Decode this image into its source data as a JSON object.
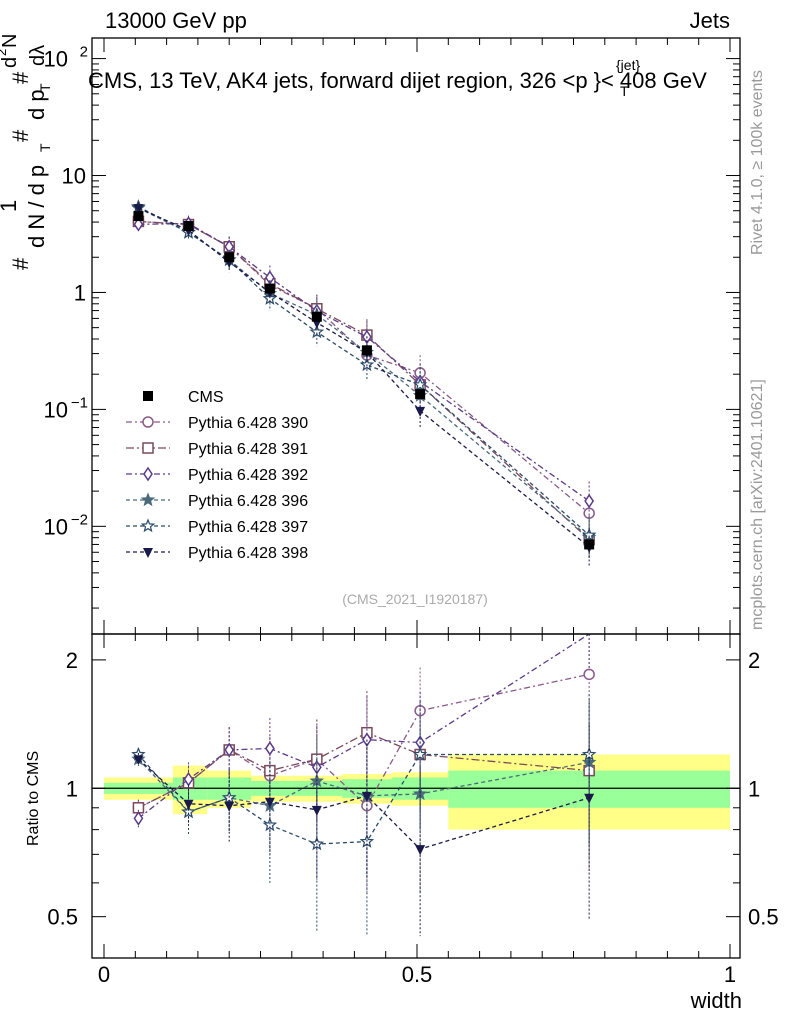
{
  "chart_data": {
    "type": "line",
    "header_left": "13000 GeV pp",
    "header_right": "Jets",
    "title": "CMS, 13 TeV, AK4 jets, forward dijet region, 326 <",
    "title_pt": "p",
    "title_sub": "T",
    "title_sup": "{jet}",
    "title_end": "}< 408 GeV",
    "ylabel_parts": [
      "#",
      "1",
      "d N / d p",
      "T",
      "#",
      "d p",
      "T",
      "#",
      "d",
      "2",
      "N",
      "dλ"
    ],
    "xlabel": "width",
    "ratio_ylabel": "Ratio to CMS",
    "side_label_top": "Rivet 4.1.0, ≥ 100k events",
    "side_label_bottom": "mcplots.cern.ch [arXiv:2401.10621]",
    "watermark": "(CMS_2021_I1920187)",
    "xlim": [
      0,
      1
    ],
    "ylim_log": [
      0.0012,
      150
    ],
    "ratio_ylim": [
      0.4,
      2.3
    ],
    "x": [
      0.055,
      0.135,
      0.2,
      0.265,
      0.34,
      0.42,
      0.505,
      0.775
    ],
    "x_edges": [
      0.0,
      0.11,
      0.165,
      0.235,
      0.3,
      0.38,
      0.46,
      0.55,
      1.0
    ],
    "main_yticks": [
      {
        "v": 0.01,
        "label": "10",
        "exp": "−2"
      },
      {
        "v": 0.1,
        "label": "10",
        "exp": "−1"
      },
      {
        "v": 1,
        "label": "1",
        "exp": ""
      },
      {
        "v": 10,
        "label": "10",
        "exp": ""
      },
      {
        "v": 100,
        "label": "10",
        "exp": "2"
      }
    ],
    "ratio_yticks": [
      {
        "v": 0.5,
        "label": "0.5"
      },
      {
        "v": 1,
        "label": "1"
      },
      {
        "v": 2,
        "label": "2"
      }
    ],
    "xticks": [
      {
        "v": 0,
        "label": "0"
      },
      {
        "v": 0.5,
        "label": "0.5"
      },
      {
        "v": 1,
        "label": "1"
      }
    ],
    "data": {
      "name": "CMS",
      "values": [
        4.5,
        3.7,
        2.0,
        1.08,
        0.62,
        0.32,
        0.135,
        0.007
      ],
      "band_inner": [
        0.03,
        0.06,
        0.06,
        0.04,
        0.04,
        0.05,
        0.06,
        0.1
      ],
      "band_outer": [
        0.06,
        0.13,
        0.1,
        0.07,
        0.07,
        0.08,
        0.09,
        0.2
      ]
    },
    "series": [
      {
        "name": "Pythia 6.428 390",
        "marker": "circle-open",
        "color": "#8a5a8a",
        "dash": "6,3,2,3",
        "ratio": [
          0.9,
          1.03,
          1.23,
          1.07,
          1.17,
          0.91,
          1.52,
          1.85
        ]
      },
      {
        "name": "Pythia 6.428 391",
        "marker": "square-open",
        "color": "#7a4a5a",
        "dash": "8,3,2,3",
        "ratio": [
          0.9,
          1.03,
          1.23,
          1.1,
          1.17,
          1.35,
          1.2,
          1.1
        ]
      },
      {
        "name": "Pythia 6.428 392",
        "marker": "diamond-open",
        "color": "#5a3a8a",
        "dash": "6,3,2,3",
        "ratio": [
          0.85,
          1.05,
          1.23,
          1.24,
          1.12,
          1.3,
          1.28,
          2.35
        ]
      },
      {
        "name": "Pythia 6.428 396",
        "marker": "star-filled",
        "color": "#4a6a7a",
        "dash": "4,3",
        "ratio": [
          1.17,
          0.88,
          0.95,
          0.91,
          1.04,
          0.96,
          0.97,
          1.15
        ]
      },
      {
        "name": "Pythia 6.428 397",
        "marker": "star-open",
        "color": "#2a4a6a",
        "dash": "4,3",
        "ratio": [
          1.2,
          0.88,
          0.95,
          0.82,
          0.74,
          0.75,
          1.2,
          1.2
        ]
      },
      {
        "name": "Pythia 6.428 398",
        "marker": "tri-down-filled",
        "color": "#1a1a4a",
        "dash": "4,3",
        "ratio": [
          1.17,
          0.92,
          0.91,
          0.93,
          0.89,
          0.96,
          0.72,
          0.95
        ]
      }
    ]
  }
}
